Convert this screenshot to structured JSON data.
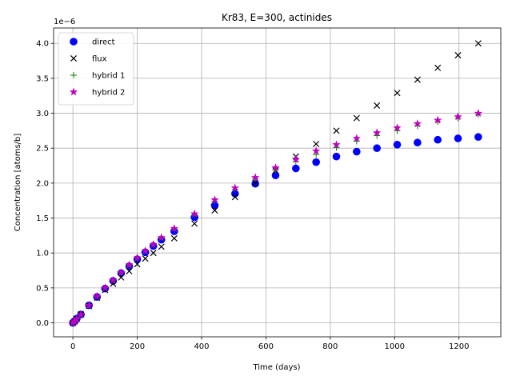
{
  "chart_data": {
    "type": "scatter",
    "title": "Kr83, E=300, actinides",
    "xlabel": "Time (days)",
    "ylabel": "Concentration [atoms/b]",
    "y_multiplier_label": "1e−6",
    "xlim": [
      -60,
      1330
    ],
    "ylim": [
      -0.2,
      4.22
    ],
    "x_ticks": [
      0,
      200,
      400,
      600,
      800,
      1000,
      1200
    ],
    "y_ticks": [
      0.0,
      0.5,
      1.0,
      1.5,
      2.0,
      2.5,
      3.0,
      3.5,
      4.0
    ],
    "x_tick_labels": [
      "0",
      "200",
      "400",
      "600",
      "800",
      "1000",
      "1200"
    ],
    "y_tick_labels": [
      "0.0",
      "0.5",
      "1.0",
      "1.5",
      "2.0",
      "2.5",
      "3.0",
      "3.5",
      "4.0"
    ],
    "grid": true,
    "legend_position": "upper-left",
    "series": [
      {
        "name": "direct",
        "marker": "circle",
        "color": "#0000ff",
        "x": [
          0,
          5,
          12,
          25,
          50,
          75,
          100,
          125,
          150,
          175,
          200,
          225,
          250,
          275,
          315,
          378,
          441,
          504,
          567,
          630,
          693,
          756,
          819,
          882,
          945,
          1008,
          1071,
          1134,
          1197,
          1260
        ],
        "y": [
          0.0,
          0.02,
          0.06,
          0.12,
          0.25,
          0.37,
          0.49,
          0.6,
          0.71,
          0.81,
          0.91,
          1.01,
          1.1,
          1.19,
          1.31,
          1.51,
          1.68,
          1.85,
          1.99,
          2.11,
          2.21,
          2.3,
          2.38,
          2.45,
          2.5,
          2.55,
          2.58,
          2.62,
          2.64,
          2.66
        ]
      },
      {
        "name": "flux",
        "marker": "x",
        "color": "#000000",
        "x": [
          0,
          5,
          12,
          25,
          50,
          75,
          100,
          125,
          150,
          175,
          200,
          225,
          250,
          275,
          315,
          378,
          441,
          504,
          567,
          630,
          693,
          756,
          819,
          882,
          945,
          1008,
          1071,
          1134,
          1197,
          1260
        ],
        "y": [
          0.0,
          0.02,
          0.06,
          0.12,
          0.24,
          0.36,
          0.47,
          0.56,
          0.65,
          0.74,
          0.84,
          0.92,
          1.0,
          1.09,
          1.21,
          1.42,
          1.61,
          1.8,
          2.0,
          2.18,
          2.38,
          2.56,
          2.75,
          2.93,
          3.11,
          3.29,
          3.48,
          3.65,
          3.83,
          4.0
        ]
      },
      {
        "name": "hybrid 1",
        "marker": "plus",
        "color": "#008000",
        "x": [
          0,
          5,
          12,
          25,
          50,
          75,
          100,
          125,
          150,
          175,
          200,
          225,
          250,
          275,
          315,
          378,
          441,
          504,
          567,
          630,
          693,
          756,
          819,
          882,
          945,
          1008,
          1071,
          1134,
          1197,
          1260
        ],
        "y": [
          0.0,
          0.02,
          0.06,
          0.12,
          0.25,
          0.38,
          0.5,
          0.61,
          0.72,
          0.82,
          0.93,
          1.03,
          1.12,
          1.21,
          1.34,
          1.54,
          1.74,
          1.91,
          2.06,
          2.19,
          2.31,
          2.41,
          2.51,
          2.6,
          2.68,
          2.75,
          2.82,
          2.88,
          2.93,
          2.98
        ]
      },
      {
        "name": "hybrid 2",
        "marker": "star",
        "color": "#bf00bf",
        "x": [
          0,
          5,
          12,
          25,
          50,
          75,
          100,
          125,
          150,
          175,
          200,
          225,
          250,
          275,
          315,
          378,
          441,
          504,
          567,
          630,
          693,
          756,
          819,
          882,
          945,
          1008,
          1071,
          1134,
          1197,
          1260
        ],
        "y": [
          0.0,
          0.02,
          0.06,
          0.12,
          0.25,
          0.38,
          0.5,
          0.61,
          0.72,
          0.83,
          0.93,
          1.03,
          1.12,
          1.22,
          1.35,
          1.56,
          1.76,
          1.93,
          2.08,
          2.22,
          2.34,
          2.46,
          2.55,
          2.64,
          2.72,
          2.79,
          2.85,
          2.9,
          2.95,
          3.0
        ]
      }
    ]
  }
}
